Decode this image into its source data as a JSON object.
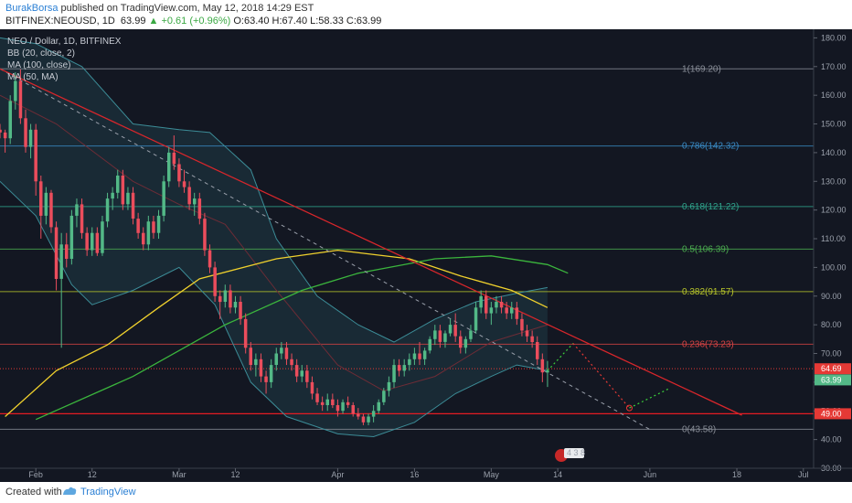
{
  "header": {
    "author": "BurakBorsa",
    "published": "published on TradingView.com, May 12, 2018 14:29 EST",
    "symbol": "BITFINEX:NEOUSD, 1D",
    "last": "63.99",
    "change": "▲ +0.61 (+0.96%)",
    "ohlc": "O:63.40 H:67.40 L:58.33 C:63.99"
  },
  "legend": {
    "pair": "NEO / Dollar, 1D, BITFINEX",
    "bb": "BB (20, close, 2)",
    "ma100": "MA (100, close)",
    "ma50": "MA (50, MA)"
  },
  "footer": {
    "created": "Created with",
    "brand": "TradingView"
  },
  "colors": {
    "background": "#131722",
    "up": "#53b987",
    "down": "#eb4d5c",
    "bb_fill": "#1f3b45",
    "bb_band": "#3c8c97",
    "bb_basis": "#6d2c36",
    "ma100": "#f0d12d",
    "ma50": "#3bb53d",
    "trendline": "#d8262b",
    "support": "#e51c23"
  },
  "chart_data": {
    "type": "candlestick",
    "y_axis": {
      "range": [
        30,
        183
      ],
      "ticks": [
        "180.00",
        "170.00",
        "160.00",
        "150.00",
        "140.00",
        "130.00",
        "120.00",
        "110.00",
        "100.00",
        "90.00",
        "80.00",
        "70.00",
        "60.00",
        "50.00",
        "40.00",
        "30.00"
      ]
    },
    "x_axis": {
      "start": "2018-01-25",
      "end": "2018-07-03",
      "ticks": [
        {
          "date": "2018-02-01",
          "label": "Feb"
        },
        {
          "date": "2018-02-12",
          "label": "12"
        },
        {
          "date": "2018-03-01",
          "label": "Mar"
        },
        {
          "date": "2018-03-12",
          "label": "12"
        },
        {
          "date": "2018-04-01",
          "label": "Apr"
        },
        {
          "date": "2018-04-16",
          "label": "16"
        },
        {
          "date": "2018-05-01",
          "label": "May"
        },
        {
          "date": "2018-05-14",
          "label": "14"
        },
        {
          "date": "2018-06-01",
          "label": "Jun"
        },
        {
          "date": "2018-06-18",
          "label": "18"
        },
        {
          "date": "2018-07-01",
          "label": "Jul"
        }
      ]
    },
    "fib_levels": [
      {
        "label": "1(169.20)",
        "value": 169.2,
        "color": "#8a8f99"
      },
      {
        "label": "0.786(142.32)",
        "value": 142.32,
        "color": "#3a8cc7"
      },
      {
        "label": "0.618(121.22)",
        "value": 121.22,
        "color": "#2fa58d"
      },
      {
        "label": "0.5(106.39)",
        "value": 106.39,
        "color": "#4caf50"
      },
      {
        "label": "0.382(91.57)",
        "value": 91.57,
        "color": "#b8c52a"
      },
      {
        "label": "0.236(73.23)",
        "value": 73.23,
        "color": "#d84343"
      },
      {
        "label": "0(43.58)",
        "value": 43.58,
        "color": "#8a8f99"
      }
    ],
    "price_tags": [
      {
        "label": "64.69",
        "value": 64.69,
        "color": "#e53935"
      },
      {
        "label": "63.99",
        "value": 63.99,
        "color": "#53b987"
      },
      {
        "label": "49.00",
        "value": 49.0,
        "color": "#e53935"
      }
    ],
    "candles": [
      [
        "2018-01-25",
        148,
        150,
        145,
        147
      ],
      [
        "2018-01-26",
        147,
        148,
        140,
        145
      ],
      [
        "2018-01-27",
        145,
        160,
        143,
        158
      ],
      [
        "2018-01-28",
        158,
        168,
        155,
        165
      ],
      [
        "2018-01-29",
        165,
        169,
        150,
        152
      ],
      [
        "2018-01-30",
        152,
        155,
        140,
        142
      ],
      [
        "2018-01-31",
        142,
        150,
        138,
        148
      ],
      [
        "2018-02-01",
        148,
        150,
        125,
        130
      ],
      [
        "2018-02-02",
        130,
        132,
        110,
        118
      ],
      [
        "2018-02-03",
        118,
        128,
        115,
        126
      ],
      [
        "2018-02-04",
        126,
        127,
        112,
        114
      ],
      [
        "2018-02-05",
        114,
        116,
        92,
        96
      ],
      [
        "2018-02-06",
        96,
        112,
        72,
        108
      ],
      [
        "2018-02-07",
        108,
        112,
        100,
        103
      ],
      [
        "2018-02-08",
        103,
        120,
        101,
        118
      ],
      [
        "2018-02-09",
        118,
        124,
        114,
        122
      ],
      [
        "2018-02-10",
        122,
        124,
        110,
        112
      ],
      [
        "2018-02-11",
        112,
        114,
        104,
        106
      ],
      [
        "2018-02-12",
        106,
        114,
        104,
        112
      ],
      [
        "2018-02-13",
        112,
        114,
        104,
        105
      ],
      [
        "2018-02-14",
        105,
        118,
        104,
        116
      ],
      [
        "2018-02-15",
        116,
        126,
        114,
        124
      ],
      [
        "2018-02-16",
        124,
        128,
        120,
        126
      ],
      [
        "2018-02-17",
        126,
        134,
        124,
        132
      ],
      [
        "2018-02-18",
        132,
        134,
        120,
        122
      ],
      [
        "2018-02-19",
        122,
        128,
        120,
        126
      ],
      [
        "2018-02-20",
        126,
        128,
        115,
        117
      ],
      [
        "2018-02-21",
        117,
        119,
        110,
        112
      ],
      [
        "2018-02-22",
        112,
        114,
        106,
        108
      ],
      [
        "2018-02-23",
        108,
        118,
        106,
        116
      ],
      [
        "2018-02-24",
        116,
        118,
        110,
        112
      ],
      [
        "2018-02-25",
        112,
        120,
        110,
        118
      ],
      [
        "2018-02-26",
        118,
        132,
        116,
        130
      ],
      [
        "2018-02-27",
        130,
        142,
        128,
        140
      ],
      [
        "2018-02-28",
        140,
        146,
        134,
        136
      ],
      [
        "2018-03-01",
        136,
        138,
        128,
        130
      ],
      [
        "2018-03-02",
        130,
        134,
        126,
        128
      ],
      [
        "2018-03-03",
        128,
        130,
        120,
        122
      ],
      [
        "2018-03-04",
        122,
        126,
        118,
        124
      ],
      [
        "2018-03-05",
        124,
        126,
        115,
        117
      ],
      [
        "2018-03-06",
        117,
        119,
        104,
        106
      ],
      [
        "2018-03-07",
        106,
        108,
        98,
        100
      ],
      [
        "2018-03-08",
        100,
        102,
        88,
        90
      ],
      [
        "2018-03-09",
        90,
        92,
        82,
        88
      ],
      [
        "2018-03-10",
        88,
        94,
        86,
        92
      ],
      [
        "2018-03-11",
        92,
        94,
        84,
        86
      ],
      [
        "2018-03-12",
        86,
        90,
        84,
        88
      ],
      [
        "2018-03-13",
        88,
        90,
        80,
        82
      ],
      [
        "2018-03-14",
        82,
        84,
        70,
        72
      ],
      [
        "2018-03-15",
        72,
        74,
        64,
        66
      ],
      [
        "2018-03-16",
        66,
        70,
        62,
        68
      ],
      [
        "2018-03-17",
        68,
        70,
        60,
        62
      ],
      [
        "2018-03-18",
        62,
        64,
        56,
        60
      ],
      [
        "2018-03-19",
        60,
        68,
        58,
        66
      ],
      [
        "2018-03-20",
        66,
        72,
        64,
        70
      ],
      [
        "2018-03-21",
        70,
        74,
        68,
        72
      ],
      [
        "2018-03-22",
        72,
        74,
        66,
        68
      ],
      [
        "2018-03-23",
        68,
        70,
        64,
        66
      ],
      [
        "2018-03-24",
        66,
        68,
        60,
        62
      ],
      [
        "2018-03-25",
        62,
        66,
        60,
        64
      ],
      [
        "2018-03-26",
        64,
        66,
        58,
        60
      ],
      [
        "2018-03-27",
        60,
        62,
        54,
        56
      ],
      [
        "2018-03-28",
        56,
        58,
        52,
        53
      ],
      [
        "2018-03-29",
        53,
        55,
        50,
        52
      ],
      [
        "2018-03-30",
        52,
        56,
        50,
        54
      ],
      [
        "2018-03-31",
        54,
        56,
        51,
        52
      ],
      [
        "2018-04-01",
        52,
        54,
        48,
        50
      ],
      [
        "2018-04-02",
        50,
        54,
        49,
        53
      ],
      [
        "2018-04-03",
        53,
        55,
        51,
        52
      ],
      [
        "2018-04-04",
        52,
        53,
        48,
        49
      ],
      [
        "2018-04-05",
        49,
        51,
        47,
        48
      ],
      [
        "2018-04-06",
        48,
        49,
        45,
        46
      ],
      [
        "2018-04-07",
        46,
        49,
        45,
        48
      ],
      [
        "2018-04-08",
        48,
        52,
        46,
        50
      ],
      [
        "2018-04-09",
        50,
        54,
        49,
        53
      ],
      [
        "2018-04-10",
        53,
        58,
        52,
        57
      ],
      [
        "2018-04-11",
        57,
        62,
        55,
        60
      ],
      [
        "2018-04-12",
        60,
        68,
        58,
        66
      ],
      [
        "2018-04-13",
        66,
        68,
        62,
        64
      ],
      [
        "2018-04-14",
        64,
        68,
        62,
        66
      ],
      [
        "2018-04-15",
        66,
        70,
        64,
        68
      ],
      [
        "2018-04-16",
        68,
        72,
        66,
        70
      ],
      [
        "2018-04-17",
        70,
        74,
        66,
        68
      ],
      [
        "2018-04-18",
        68,
        72,
        66,
        71
      ],
      [
        "2018-04-19",
        71,
        76,
        70,
        75
      ],
      [
        "2018-04-20",
        75,
        80,
        73,
        78
      ],
      [
        "2018-04-21",
        78,
        80,
        72,
        74
      ],
      [
        "2018-04-22",
        74,
        78,
        72,
        77
      ],
      [
        "2018-04-23",
        77,
        82,
        76,
        80
      ],
      [
        "2018-04-24",
        80,
        84,
        74,
        76
      ],
      [
        "2018-04-25",
        76,
        78,
        70,
        72
      ],
      [
        "2018-04-26",
        72,
        76,
        70,
        75
      ],
      [
        "2018-04-27",
        75,
        80,
        74,
        78
      ],
      [
        "2018-04-28",
        78,
        88,
        77,
        86
      ],
      [
        "2018-04-29",
        86,
        92,
        84,
        90
      ],
      [
        "2018-04-30",
        90,
        92,
        82,
        84
      ],
      [
        "2018-05-01",
        84,
        88,
        80,
        86
      ],
      [
        "2018-05-02",
        86,
        90,
        84,
        88
      ],
      [
        "2018-05-03",
        88,
        90,
        84,
        86
      ],
      [
        "2018-05-04",
        86,
        88,
        82,
        84
      ],
      [
        "2018-05-05",
        84,
        88,
        82,
        86
      ],
      [
        "2018-05-06",
        86,
        88,
        80,
        82
      ],
      [
        "2018-05-07",
        82,
        84,
        76,
        78
      ],
      [
        "2018-05-08",
        78,
        80,
        74,
        76
      ],
      [
        "2018-05-09",
        76,
        78,
        72,
        74
      ],
      [
        "2018-05-10",
        74,
        76,
        66,
        68
      ],
      [
        "2018-05-11",
        68,
        70,
        60,
        63.4
      ],
      [
        "2018-05-12",
        63.4,
        67.4,
        58.33,
        63.99
      ]
    ],
    "bb_upper": [
      [
        "2018-01-25",
        180
      ],
      [
        "2018-02-01",
        178
      ],
      [
        "2018-02-10",
        170
      ],
      [
        "2018-02-20",
        150
      ],
      [
        "2018-03-01",
        148
      ],
      [
        "2018-03-07",
        147
      ],
      [
        "2018-03-15",
        134
      ],
      [
        "2018-03-20",
        110
      ],
      [
        "2018-03-28",
        90
      ],
      [
        "2018-04-05",
        80
      ],
      [
        "2018-04-12",
        74
      ],
      [
        "2018-04-20",
        82
      ],
      [
        "2018-04-28",
        88
      ],
      [
        "2018-05-06",
        91
      ],
      [
        "2018-05-12",
        93
      ]
    ],
    "bb_lower": [
      [
        "2018-01-25",
        130
      ],
      [
        "2018-02-01",
        118
      ],
      [
        "2018-02-08",
        94
      ],
      [
        "2018-02-12",
        87
      ],
      [
        "2018-02-20",
        92
      ],
      [
        "2018-03-01",
        100
      ],
      [
        "2018-03-08",
        87
      ],
      [
        "2018-03-15",
        60
      ],
      [
        "2018-03-22",
        48
      ],
      [
        "2018-04-01",
        42
      ],
      [
        "2018-04-08",
        41
      ],
      [
        "2018-04-16",
        46
      ],
      [
        "2018-04-24",
        56
      ],
      [
        "2018-05-01",
        62
      ],
      [
        "2018-05-06",
        66
      ],
      [
        "2018-05-12",
        64
      ]
    ],
    "bb_basis": [
      [
        "2018-01-25",
        160
      ],
      [
        "2018-02-05",
        150
      ],
      [
        "2018-02-20",
        130
      ],
      [
        "2018-03-01",
        122
      ],
      [
        "2018-03-10",
        115
      ],
      [
        "2018-03-20",
        92
      ],
      [
        "2018-04-01",
        66
      ],
      [
        "2018-04-10",
        57
      ],
      [
        "2018-04-20",
        62
      ],
      [
        "2018-05-01",
        74
      ],
      [
        "2018-05-12",
        80
      ]
    ],
    "ma100": [
      [
        "2018-01-26",
        48
      ],
      [
        "2018-02-05",
        64
      ],
      [
        "2018-02-15",
        73
      ],
      [
        "2018-02-25",
        86
      ],
      [
        "2018-03-05",
        96
      ],
      [
        "2018-03-20",
        103
      ],
      [
        "2018-04-01",
        106
      ],
      [
        "2018-04-15",
        103
      ],
      [
        "2018-04-25",
        97
      ],
      [
        "2018-05-05",
        92
      ],
      [
        "2018-05-12",
        86
      ]
    ],
    "ma50": [
      [
        "2018-02-01",
        47
      ],
      [
        "2018-02-20",
        62
      ],
      [
        "2018-03-10",
        80
      ],
      [
        "2018-03-25",
        92
      ],
      [
        "2018-04-05",
        98
      ],
      [
        "2018-04-20",
        103
      ],
      [
        "2018-05-01",
        104
      ],
      [
        "2018-05-12",
        101
      ],
      [
        "2018-05-16",
        98
      ]
    ],
    "trendline": [
      [
        "2018-01-25",
        169.2
      ],
      [
        "2018-06-19",
        48.5
      ]
    ],
    "dashed_trend": [
      [
        "2018-01-25",
        169.2
      ],
      [
        "2018-06-01",
        43.5
      ]
    ],
    "support_line": 49.0,
    "projection_up": [
      [
        "2018-05-12",
        63.99
      ],
      [
        "2018-05-17",
        73.5
      ]
    ],
    "projection_down": [
      [
        "2018-05-17",
        73.5
      ],
      [
        "2018-05-28",
        51
      ]
    ],
    "projection_up2": [
      [
        "2018-05-28",
        51
      ],
      [
        "2018-06-05",
        58
      ]
    ]
  }
}
